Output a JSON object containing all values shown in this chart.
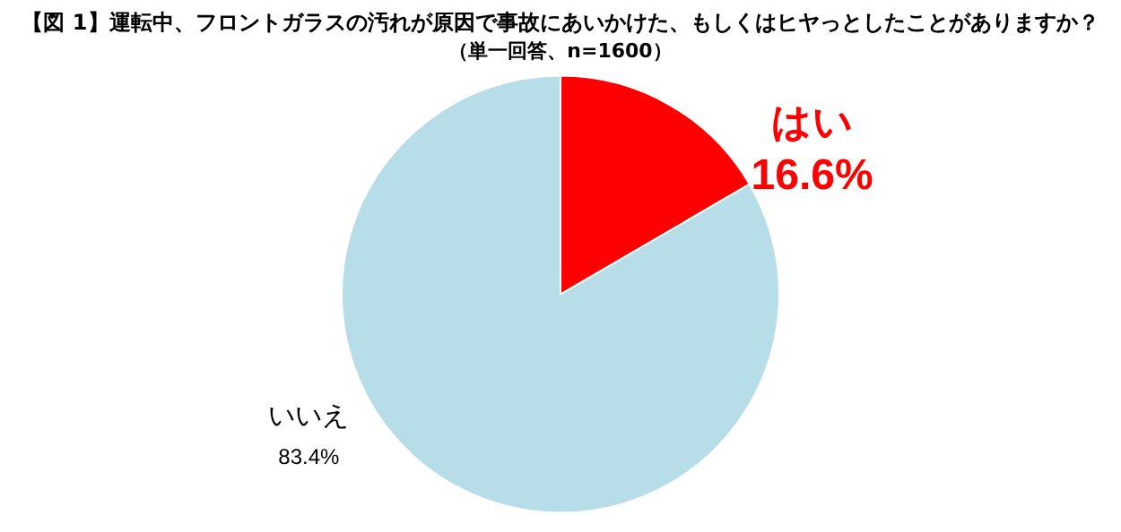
{
  "chart_data": {
    "type": "pie",
    "title": "【図 1】運転中、フロントガラスの汚れが原因で事故にあいかけた、もしくはヒヤっとしたことがありますか？",
    "subtitle": "（単一回答、n=1600）",
    "categories": [
      "はい",
      "いいえ"
    ],
    "values": [
      16.6,
      83.4
    ],
    "colors": [
      "#ff0000",
      "#b7dde8"
    ],
    "value_labels": [
      "16.6%",
      "83.4%"
    ],
    "legend": false
  }
}
